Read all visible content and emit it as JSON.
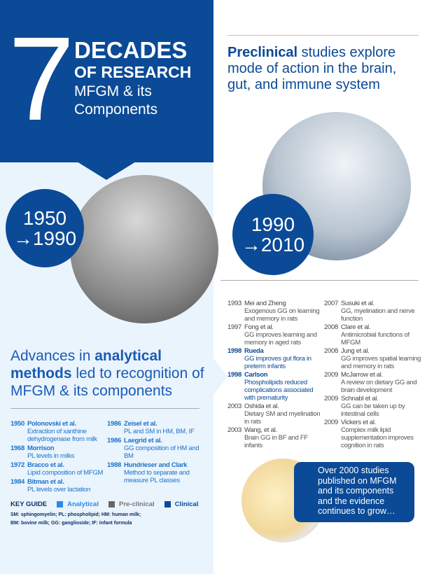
{
  "header": {
    "number": "7",
    "line1": "DECADES",
    "line2": "OF RESEARCH",
    "line3": "MFGM & its Components"
  },
  "left": {
    "period_start": "1950",
    "period_end": "→1990",
    "headline_pre": "Advances in ",
    "headline_bold": "analytical methods",
    "headline_post": " led to recognition of MFGM & its components",
    "entries_col1": [
      {
        "year": "1950",
        "author": "Polonovski et al.",
        "text": "Extraction of xanthine dehydrogenase from milk",
        "type": "analytical"
      },
      {
        "year": "1968",
        "author": "Morrison",
        "text": "PL levels in milks",
        "type": "analytical"
      },
      {
        "year": "1972",
        "author": "Bracco et al.",
        "text": "Lipid composition of MFGM",
        "type": "analytical"
      },
      {
        "year": "1984",
        "author": "Bitman et al.",
        "text": "PL levels over lactation",
        "type": "analytical"
      }
    ],
    "entries_col2": [
      {
        "year": "1986",
        "author": "Zeisel et al.",
        "text": "PL and SM in HM, BM, IF",
        "type": "analytical"
      },
      {
        "year": "1986",
        "author": "Laegrid et al.",
        "text": "GG composition of HM and BM",
        "type": "analytical"
      },
      {
        "year": "1988",
        "author": "Hundrieser and Clark",
        "text": "Method to separate and measure PL classes",
        "type": "analytical"
      }
    ]
  },
  "key": {
    "title": "KEY GUIDE",
    "analytical": "Analytical",
    "preclinical": "Pre-clinical",
    "clinical": "Clinical",
    "colors": {
      "analytical": "#2b8ae6",
      "preclinical": "#666666",
      "clinical": "#0b4a96"
    },
    "abbr1": "SM: sphingomyelin; PL: phospholipid; HM: human milk;",
    "abbr2": "BM: bovine milk; GG: ganglioside; IF: infant formula"
  },
  "right": {
    "title_bold": "Preclinical",
    "title_rest": " studies explore mode of action in the brain, gut, and immune system",
    "period_start": "1990",
    "period_end": "→2010",
    "entries_col1": [
      {
        "year": "1993",
        "author": "Mei and Zheng",
        "text": "Exogenous GG on learning and memory in rats",
        "type": "preclinical"
      },
      {
        "year": "1997",
        "author": "Fong et al.",
        "text": "GG improves learning and memory in aged rats",
        "type": "preclinical"
      },
      {
        "year": "1998",
        "author": "Rueda",
        "text": "GG improves gut flora in preterm infants",
        "type": "clinical"
      },
      {
        "year": "1998",
        "author": "Carlson",
        "text": "Phospholipids reduced complications associated with prematurity",
        "type": "clinical"
      },
      {
        "year": "2003",
        "author": "Oshida et al.",
        "text": "Dietary SM and myelination in rats",
        "type": "preclinical"
      },
      {
        "year": "2003",
        "author": "Wang, et al.",
        "text": "Brain GG in BF and FF infants",
        "type": "preclinical"
      }
    ],
    "entries_col2": [
      {
        "year": "2007",
        "author": "Susuki et al.",
        "text": "GG, myelination and nerve function",
        "type": "preclinical"
      },
      {
        "year": "2008",
        "author": "Clare et al.",
        "text": "Antimicrobial functions of MFGM",
        "type": "preclinical"
      },
      {
        "year": "2008",
        "author": "Jung et al.",
        "text": "GG improves spatial learning and memory in rats",
        "type": "preclinical"
      },
      {
        "year": "2009",
        "author": "McJarrow et al.",
        "text": "A review on dietary GG and brain development",
        "type": "preclinical"
      },
      {
        "year": "2009",
        "author": "Schnabl et al.",
        "text": "GG can be taken up by intestinal cells",
        "type": "preclinical"
      },
      {
        "year": "2009",
        "author": "Vickers et al.",
        "text": "Complex milk lipid supplementation improves cognition in rats",
        "type": "preclinical"
      }
    ],
    "callout": "Over 2000 studies published on MFGM and its components and the evidence continues to grow…"
  }
}
